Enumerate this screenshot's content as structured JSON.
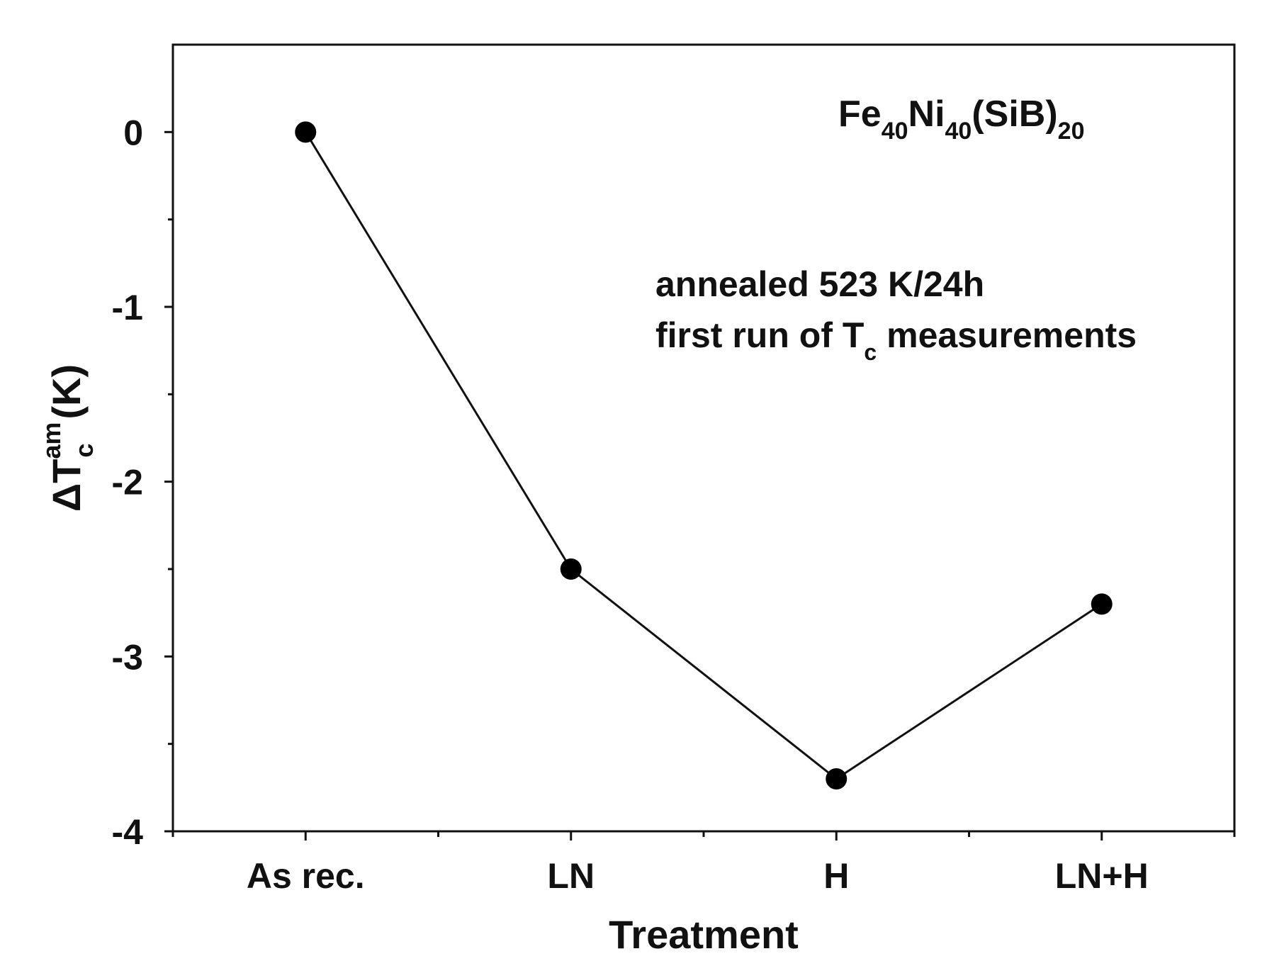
{
  "chart_data": {
    "type": "line",
    "categories": [
      "As rec.",
      "LN",
      "H",
      "LN+H"
    ],
    "series": [
      {
        "name": "dTc_am",
        "values": [
          0,
          -2.5,
          -3.7,
          -2.7
        ]
      }
    ],
    "xlabel": "Treatment",
    "ylabel": {
      "prefix": "ΔT",
      "superscript": "am",
      "subscript": "c",
      "suffix": "(K)"
    },
    "ylim": [
      -4,
      0.5
    ],
    "yticks": [
      0,
      -1,
      -2,
      -3,
      -4
    ],
    "ytick_labels": [
      "0",
      "-1",
      "-2",
      "-3",
      "-4"
    ],
    "formula": {
      "el1": "Fe",
      "sub1": "40",
      "el2": "Ni",
      "sub2": "40",
      "el3": "(SiB)",
      "sub3": "20"
    },
    "annotation": {
      "line1": "annealed 523 K/24h",
      "line2_prefix": "first run of T",
      "line2_sub": "c",
      "line2_suffix": " measurements"
    },
    "colors": {
      "line": "#111111",
      "marker": "#000000",
      "axis": "#111111"
    }
  }
}
